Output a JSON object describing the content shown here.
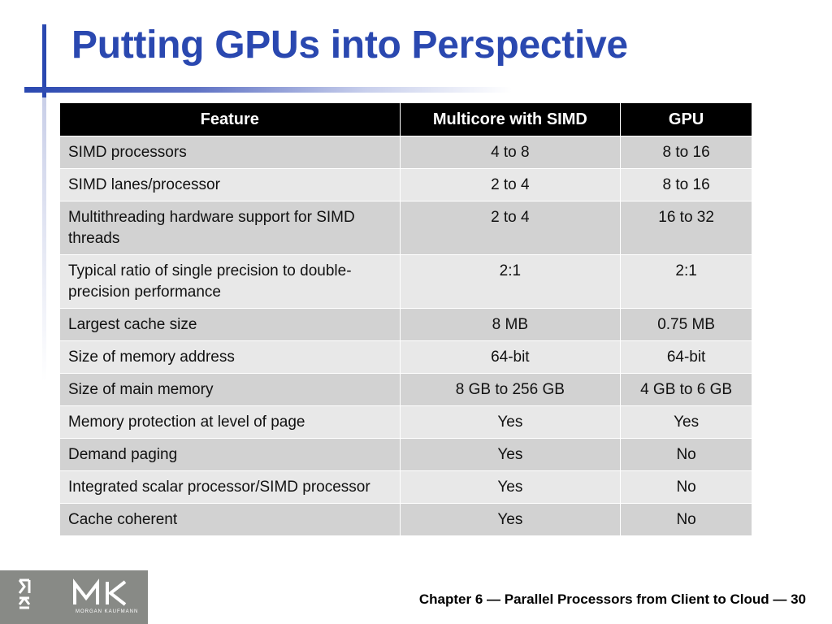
{
  "slide": {
    "title": "Putting GPUs into Perspective",
    "footer": "Chapter 6 — Parallel Processors from Client to Cloud — 30"
  },
  "logo": {
    "name": "MK-logo-icon",
    "text": "MORGAN KAUFMANN"
  },
  "colors": {
    "title": "#2a48b0",
    "header_bg": "#000000",
    "row_dark": "#d2d2d2",
    "row_light": "#e8e8e8",
    "logo_bg": "#888a86"
  },
  "table": {
    "headers": [
      "Feature",
      "Multicore with SIMD",
      "GPU"
    ],
    "rows": [
      [
        "SIMD processors",
        "4 to 8",
        "8 to 16"
      ],
      [
        "SIMD lanes/processor",
        "2 to 4",
        "8 to 16"
      ],
      [
        "Multithreading hardware support for SIMD threads",
        "2 to 4",
        "16 to 32"
      ],
      [
        "Typical ratio of single precision to double-precision performance",
        "2:1",
        "2:1"
      ],
      [
        "Largest cache size",
        "8 MB",
        "0.75 MB"
      ],
      [
        "Size of memory address",
        "64-bit",
        "64-bit"
      ],
      [
        "Size of main memory",
        "8 GB to 256 GB",
        "4 GB to 6 GB"
      ],
      [
        "Memory protection at level of page",
        "Yes",
        "Yes"
      ],
      [
        "Demand paging",
        "Yes",
        "No"
      ],
      [
        "Integrated scalar processor/SIMD processor",
        "Yes",
        "No"
      ],
      [
        "Cache coherent",
        "Yes",
        "No"
      ]
    ]
  }
}
